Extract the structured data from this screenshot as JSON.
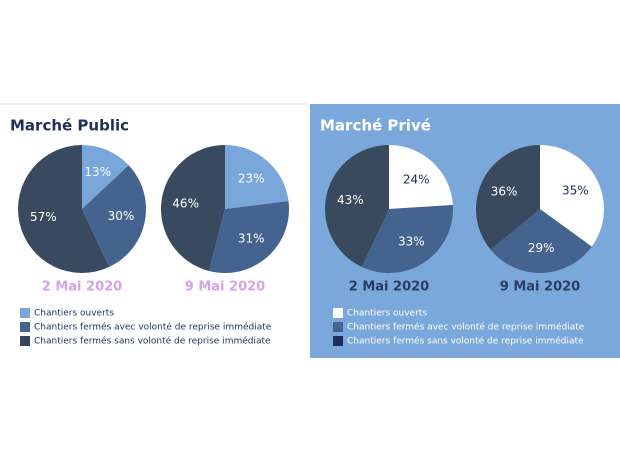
{
  "panels": [
    {
      "title": "Marché Public",
      "legend_colors": [
        "#7aa7d9",
        "#44648f",
        "#33445c"
      ]
    },
    {
      "title": "Marché Privé",
      "legend_colors": [
        "#ffffff",
        "#44648f",
        "#1f2f5c"
      ]
    }
  ],
  "chart_data": [
    {
      "type": "pie",
      "title": "2 Mai 2020",
      "categories": [
        "Chantiers ouverts",
        "Chantiers fermés avec volonté de reprise immédiate",
        "Chantiers fermés sans volonté de reprise immédiate"
      ],
      "values": [
        13,
        30,
        57
      ],
      "value_labels": [
        "13%",
        "30%",
        "57%"
      ],
      "colors": [
        "#7aa7d9",
        "#44648f",
        "#394a60"
      ]
    },
    {
      "type": "pie",
      "title": "9 Mai 2020",
      "categories": [
        "Chantiers ouverts",
        "Chantiers fermés avec volonté de reprise immédiate",
        "Chantiers fermés sans volonté de reprise immédiate"
      ],
      "values": [
        23,
        31,
        46
      ],
      "value_labels": [
        "23%",
        "31%",
        "46%"
      ],
      "colors": [
        "#7aa7d9",
        "#44648f",
        "#394a60"
      ]
    },
    {
      "type": "pie",
      "title": "2 Mai 2020",
      "categories": [
        "Chantiers ouverts",
        "Chantiers fermés avec volonté de reprise immédiate",
        "Chantiers fermés sans volonté de reprise immédiate"
      ],
      "values": [
        24,
        33,
        43
      ],
      "value_labels": [
        "24%",
        "33%",
        "43%"
      ],
      "colors": [
        "#ffffff",
        "#44648f",
        "#3a4a5e"
      ]
    },
    {
      "type": "pie",
      "title": "9 Mai 2020",
      "categories": [
        "Chantiers ouverts",
        "Chantiers fermés avec volonté de reprise immédiate",
        "Chantiers fermés sans volonté de reprise immédiate"
      ],
      "values": [
        35,
        29,
        36
      ],
      "value_labels": [
        "35%",
        "29%",
        "36%"
      ],
      "colors": [
        "#ffffff",
        "#44648f",
        "#3a4a5e"
      ]
    }
  ]
}
